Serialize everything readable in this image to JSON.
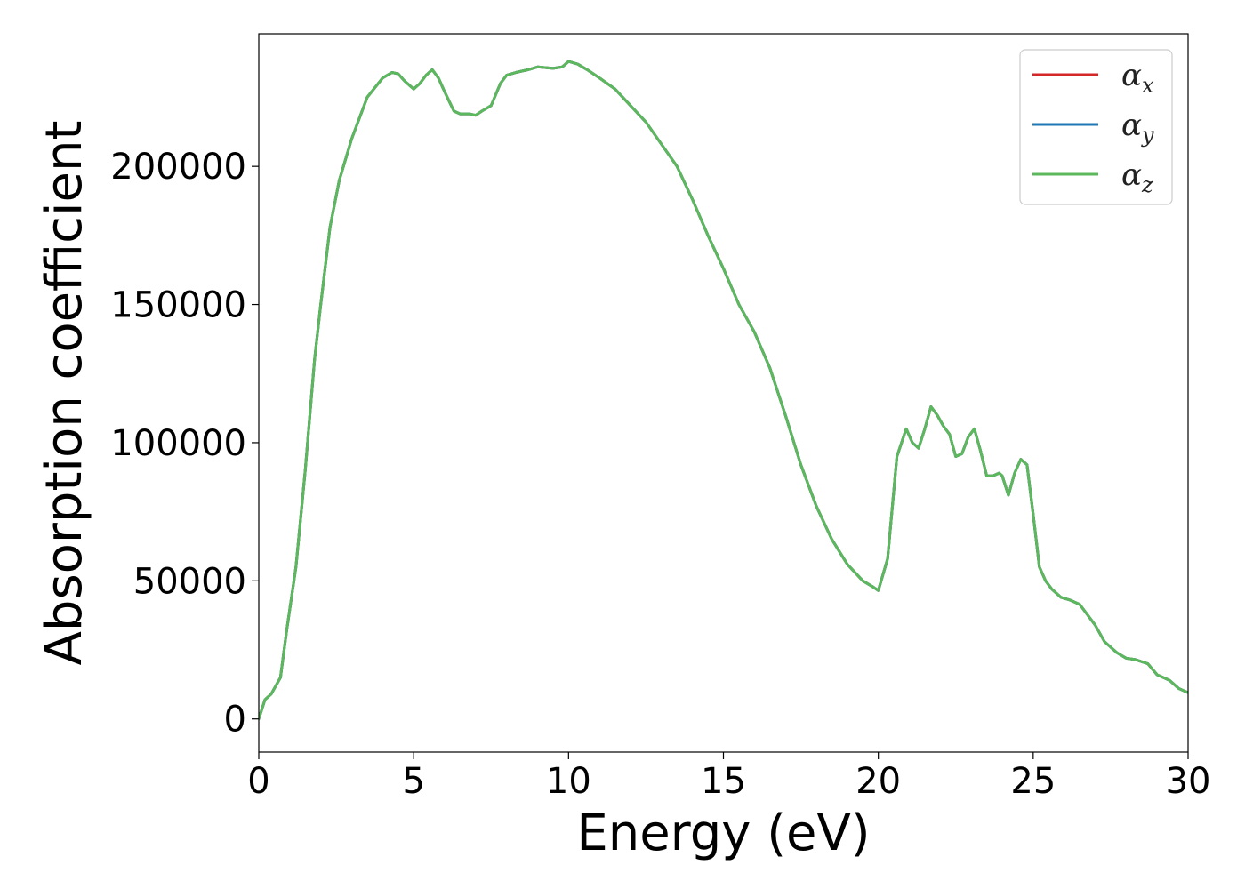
{
  "chart_data": {
    "type": "line",
    "title": "",
    "xlabel": "Energy (eV)",
    "ylabel": "Absorption coefficient",
    "xlim": [
      0,
      30
    ],
    "ylim": [
      -12000,
      248000
    ],
    "x_ticks": [
      0,
      5,
      10,
      15,
      20,
      25,
      30
    ],
    "y_ticks": [
      0,
      50000,
      100000,
      150000,
      200000
    ],
    "grid": false,
    "legend_position": "top-right",
    "series": [
      {
        "name": "αx",
        "symbol": "α",
        "subscript": "x",
        "color": "#d62728",
        "x": [
          0,
          0.2,
          0.4,
          0.7,
          0.9,
          1.2,
          1.5,
          1.8,
          2.0,
          2.3,
          2.6,
          3.0,
          3.5,
          4.0,
          4.3,
          4.5,
          4.7,
          5.0,
          5.2,
          5.4,
          5.6,
          5.8,
          6.0,
          6.3,
          6.5,
          6.8,
          7.0,
          7.2,
          7.5,
          7.8,
          8.0,
          8.3,
          8.7,
          9.0,
          9.5,
          9.8,
          10.0,
          10.3,
          10.6,
          11.0,
          11.5,
          12.0,
          12.5,
          13.0,
          13.5,
          14.0,
          14.5,
          15.0,
          15.5,
          16.0,
          16.5,
          17.0,
          17.5,
          18.0,
          18.5,
          19.0,
          19.5,
          19.8,
          20.0,
          20.3,
          20.6,
          20.9,
          21.1,
          21.3,
          21.5,
          21.7,
          21.9,
          22.1,
          22.3,
          22.5,
          22.7,
          22.9,
          23.1,
          23.3,
          23.5,
          23.7,
          23.9,
          24.0,
          24.2,
          24.4,
          24.6,
          24.8,
          25.0,
          25.2,
          25.4,
          25.6,
          25.9,
          26.2,
          26.5,
          26.8,
          27.0,
          27.3,
          27.7,
          28.0,
          28.3,
          28.7,
          29.0,
          29.4,
          29.7,
          30.0
        ],
        "y": [
          0,
          7000,
          9000,
          15000,
          32000,
          55000,
          90000,
          130000,
          150000,
          178000,
          195000,
          210000,
          225000,
          232000,
          234000,
          233500,
          231000,
          228000,
          230000,
          233000,
          235000,
          232000,
          227000,
          220000,
          219000,
          219000,
          218500,
          220000,
          222000,
          230000,
          233000,
          234000,
          235000,
          236000,
          235500,
          236000,
          238000,
          237000,
          235000,
          232000,
          228000,
          222000,
          216000,
          208000,
          200000,
          188000,
          175000,
          163000,
          150000,
          140000,
          127000,
          110000,
          92000,
          77000,
          65000,
          56000,
          50000,
          48000,
          46500,
          58000,
          95000,
          105000,
          100000,
          98000,
          105000,
          113000,
          110000,
          106000,
          103000,
          95000,
          96000,
          102000,
          105000,
          97000,
          88000,
          88000,
          89000,
          88000,
          81000,
          89000,
          94000,
          92000,
          74000,
          55000,
          50000,
          47000,
          44000,
          43000,
          41500,
          37000,
          34000,
          28000,
          24000,
          22000,
          21500,
          20000,
          16000,
          14000,
          11000,
          9500
        ]
      },
      {
        "name": "αy",
        "symbol": "α",
        "subscript": "y",
        "color": "#1f77b4",
        "x": [
          0,
          0.2,
          0.4,
          0.7,
          0.9,
          1.2,
          1.5,
          1.8,
          2.0,
          2.3,
          2.6,
          3.0,
          3.5,
          4.0,
          4.3,
          4.5,
          4.7,
          5.0,
          5.2,
          5.4,
          5.6,
          5.8,
          6.0,
          6.3,
          6.5,
          6.8,
          7.0,
          7.2,
          7.5,
          7.8,
          8.0,
          8.3,
          8.7,
          9.0,
          9.5,
          9.8,
          10.0,
          10.3,
          10.6,
          11.0,
          11.5,
          12.0,
          12.5,
          13.0,
          13.5,
          14.0,
          14.5,
          15.0,
          15.5,
          16.0,
          16.5,
          17.0,
          17.5,
          18.0,
          18.5,
          19.0,
          19.5,
          19.8,
          20.0,
          20.3,
          20.6,
          20.9,
          21.1,
          21.3,
          21.5,
          21.7,
          21.9,
          22.1,
          22.3,
          22.5,
          22.7,
          22.9,
          23.1,
          23.3,
          23.5,
          23.7,
          23.9,
          24.0,
          24.2,
          24.4,
          24.6,
          24.8,
          25.0,
          25.2,
          25.4,
          25.6,
          25.9,
          26.2,
          26.5,
          26.8,
          27.0,
          27.3,
          27.7,
          28.0,
          28.3,
          28.7,
          29.0,
          29.4,
          29.7,
          30.0
        ],
        "y": [
          0,
          7000,
          9000,
          15000,
          32000,
          55000,
          90000,
          130000,
          150000,
          178000,
          195000,
          210000,
          225000,
          232000,
          234000,
          233500,
          231000,
          228000,
          230000,
          233000,
          235000,
          232000,
          227000,
          220000,
          219000,
          219000,
          218500,
          220000,
          222000,
          230000,
          233000,
          234000,
          235000,
          236000,
          235500,
          236000,
          238000,
          237000,
          235000,
          232000,
          228000,
          222000,
          216000,
          208000,
          200000,
          188000,
          175000,
          163000,
          150000,
          140000,
          127000,
          110000,
          92000,
          77000,
          65000,
          56000,
          50000,
          48000,
          46500,
          58000,
          95000,
          105000,
          100000,
          98000,
          105000,
          113000,
          110000,
          106000,
          103000,
          95000,
          96000,
          102000,
          105000,
          97000,
          88000,
          88000,
          89000,
          88000,
          81000,
          89000,
          94000,
          92000,
          74000,
          55000,
          50000,
          47000,
          44000,
          43000,
          41500,
          37000,
          34000,
          28000,
          24000,
          22000,
          21500,
          20000,
          16000,
          14000,
          11000,
          9500
        ]
      },
      {
        "name": "αz",
        "symbol": "α",
        "subscript": "z",
        "color": "#5cb85c",
        "x": [
          0,
          0.2,
          0.4,
          0.7,
          0.9,
          1.2,
          1.5,
          1.8,
          2.0,
          2.3,
          2.6,
          3.0,
          3.5,
          4.0,
          4.3,
          4.5,
          4.7,
          5.0,
          5.2,
          5.4,
          5.6,
          5.8,
          6.0,
          6.3,
          6.5,
          6.8,
          7.0,
          7.2,
          7.5,
          7.8,
          8.0,
          8.3,
          8.7,
          9.0,
          9.5,
          9.8,
          10.0,
          10.3,
          10.6,
          11.0,
          11.5,
          12.0,
          12.5,
          13.0,
          13.5,
          14.0,
          14.5,
          15.0,
          15.5,
          16.0,
          16.5,
          17.0,
          17.5,
          18.0,
          18.5,
          19.0,
          19.5,
          19.8,
          20.0,
          20.3,
          20.6,
          20.9,
          21.1,
          21.3,
          21.5,
          21.7,
          21.9,
          22.1,
          22.3,
          22.5,
          22.7,
          22.9,
          23.1,
          23.3,
          23.5,
          23.7,
          23.9,
          24.0,
          24.2,
          24.4,
          24.6,
          24.8,
          25.0,
          25.2,
          25.4,
          25.6,
          25.9,
          26.2,
          26.5,
          26.8,
          27.0,
          27.3,
          27.7,
          28.0,
          28.3,
          28.7,
          29.0,
          29.4,
          29.7,
          30.0
        ],
        "y": [
          0,
          7000,
          9000,
          15000,
          32000,
          55000,
          90000,
          130000,
          150000,
          178000,
          195000,
          210000,
          225000,
          232000,
          234000,
          233500,
          231000,
          228000,
          230000,
          233000,
          235000,
          232000,
          227000,
          220000,
          219000,
          219000,
          218500,
          220000,
          222000,
          230000,
          233000,
          234000,
          235000,
          236000,
          235500,
          236000,
          238000,
          237000,
          235000,
          232000,
          228000,
          222000,
          216000,
          208000,
          200000,
          188000,
          175000,
          163000,
          150000,
          140000,
          127000,
          110000,
          92000,
          77000,
          65000,
          56000,
          50000,
          48000,
          46500,
          58000,
          95000,
          105000,
          100000,
          98000,
          105000,
          113000,
          110000,
          106000,
          103000,
          95000,
          96000,
          102000,
          105000,
          97000,
          88000,
          88000,
          89000,
          88000,
          81000,
          89000,
          94000,
          92000,
          74000,
          55000,
          50000,
          47000,
          44000,
          43000,
          41500,
          37000,
          34000,
          28000,
          24000,
          22000,
          21500,
          20000,
          16000,
          14000,
          11000,
          9500
        ]
      }
    ]
  }
}
